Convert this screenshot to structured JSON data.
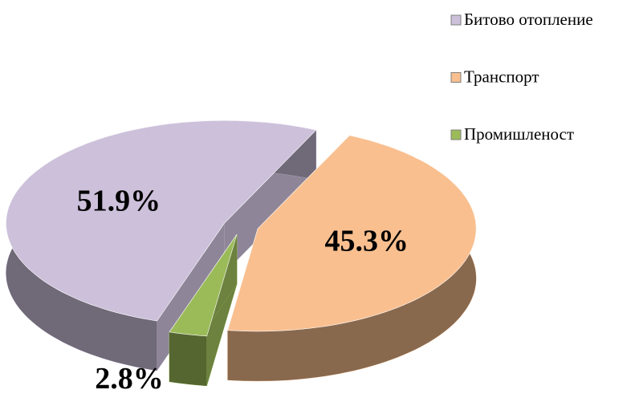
{
  "chart_data": {
    "type": "pie3d",
    "categories": [
      "Битово отопление",
      "Транспорт",
      "Промишленост"
    ],
    "values": [
      51.9,
      45.3,
      2.8
    ],
    "value_labels": [
      "51.9%",
      "45.3%",
      "2.8%"
    ],
    "colors": [
      "#ccc0da",
      "#f9bf8f",
      "#9bbb59"
    ],
    "legend": "top-right"
  }
}
